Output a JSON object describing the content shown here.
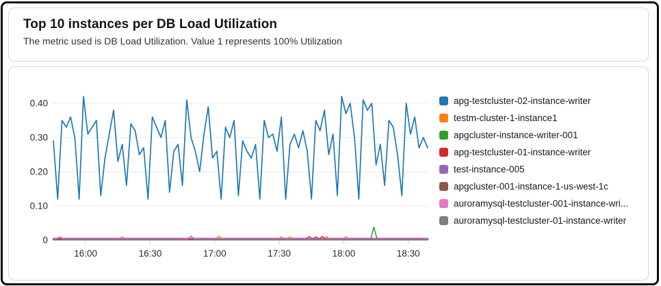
{
  "header": {
    "title": "Top 10 instances per DB Load Utilization",
    "subtitle": "The metric used is DB Load Utilization. Value 1 represents 100% Utilization"
  },
  "chart_data": {
    "type": "line",
    "title": "Top 10 instances per DB Load Utilization",
    "xlabel": "",
    "ylabel": "",
    "grid": true,
    "legend_position": "right",
    "ylim": [
      0,
      0.44
    ],
    "time_start": "15:45",
    "time_end": "18:39",
    "total_minutes": 174,
    "y_ticks": [
      {
        "value": 0.0,
        "label": "0"
      },
      {
        "value": 0.1,
        "label": "0.10"
      },
      {
        "value": 0.2,
        "label": "0.20"
      },
      {
        "value": 0.3,
        "label": "0.30"
      },
      {
        "value": 0.4,
        "label": "0.40"
      }
    ],
    "x_ticks": [
      {
        "minutes": 15,
        "label": "16:00"
      },
      {
        "minutes": 45,
        "label": "16:30"
      },
      {
        "minutes": 75,
        "label": "17:00"
      },
      {
        "minutes": 105,
        "label": "17:30"
      },
      {
        "minutes": 135,
        "label": "18:00"
      },
      {
        "minutes": 165,
        "label": "18:30"
      }
    ],
    "series": [
      {
        "name": "apg-testcluster-02-instance-writer",
        "color": "#1f77b4",
        "kind": "dense",
        "stroke_width": 1.7,
        "interval_min": 2,
        "values": [
          0.29,
          0.12,
          0.35,
          0.33,
          0.36,
          0.3,
          0.12,
          0.42,
          0.31,
          0.33,
          0.35,
          0.13,
          0.24,
          0.31,
          0.38,
          0.23,
          0.28,
          0.16,
          0.34,
          0.32,
          0.25,
          0.27,
          0.12,
          0.36,
          0.33,
          0.3,
          0.35,
          0.14,
          0.26,
          0.28,
          0.16,
          0.41,
          0.3,
          0.26,
          0.2,
          0.31,
          0.39,
          0.24,
          0.26,
          0.12,
          0.33,
          0.3,
          0.35,
          0.13,
          0.29,
          0.26,
          0.24,
          0.28,
          0.12,
          0.35,
          0.3,
          0.31,
          0.26,
          0.36,
          0.12,
          0.28,
          0.31,
          0.27,
          0.32,
          0.26,
          0.12,
          0.35,
          0.32,
          0.38,
          0.25,
          0.31,
          0.13,
          0.42,
          0.37,
          0.4,
          0.3,
          0.12,
          0.41,
          0.38,
          0.4,
          0.22,
          0.28,
          0.16,
          0.35,
          0.33,
          0.25,
          0.13,
          0.4,
          0.31,
          0.36,
          0.27,
          0.3,
          0.27
        ]
      },
      {
        "name": "testm-cluster-1-instance1",
        "color": "#ff7f0e",
        "kind": "spikes",
        "stroke_width": 1.4,
        "baseline": 0.003,
        "spikes": [
          {
            "t": 32,
            "v": 0.01
          },
          {
            "t": 77,
            "v": 0.012
          },
          {
            "t": 106,
            "v": 0.01
          },
          {
            "t": 110,
            "v": 0.01
          },
          {
            "t": 127,
            "v": 0.01
          },
          {
            "t": 136,
            "v": 0.01
          }
        ]
      },
      {
        "name": "apgcluster-instance-writer-001",
        "color": "#2ca02c",
        "kind": "spikes",
        "stroke_width": 1.5,
        "baseline": 0.003,
        "spikes": [
          {
            "t": 149,
            "v": 0.038
          }
        ]
      },
      {
        "name": "apg-testcluster-01-instance-writer",
        "color": "#d62728",
        "kind": "spikes",
        "stroke_width": 1.4,
        "baseline": 0.003,
        "spikes": [
          {
            "t": 119,
            "v": 0.011
          },
          {
            "t": 122,
            "v": 0.01
          },
          {
            "t": 125,
            "v": 0.011
          }
        ]
      },
      {
        "name": "test-instance-005",
        "color": "#9467bd",
        "kind": "spikes",
        "stroke_width": 1.4,
        "baseline": 0.003,
        "spikes": [
          {
            "t": 3,
            "v": 0.01
          },
          {
            "t": 64,
            "v": 0.012
          }
        ]
      },
      {
        "name": "apgcluster-001-instance-1-us-west-1c",
        "color": "#8c564b",
        "kind": "flat",
        "stroke_width": 1.8,
        "baseline": 0.004
      },
      {
        "name": "auroramysql-testcluster-001-instance-wri...",
        "color": "#e377c2",
        "kind": "flat",
        "stroke_width": 1.2,
        "baseline": 0.006
      },
      {
        "name": "auroramysql-testcluster-01-instance-writer",
        "color": "#7f7f7f",
        "kind": "flat",
        "stroke_width": 3,
        "baseline": 0.002
      }
    ]
  }
}
